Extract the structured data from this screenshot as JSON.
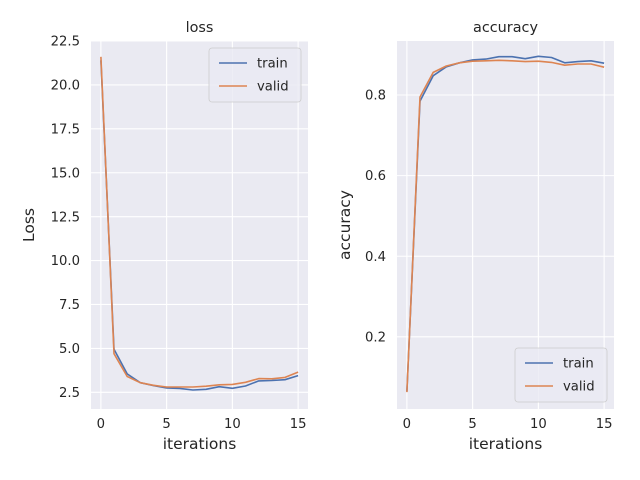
{
  "chart_data": [
    {
      "type": "line",
      "title": "loss",
      "xlabel": "iterations",
      "ylabel": "Loss",
      "xlim": [
        -0.75,
        15.75
      ],
      "ylim": [
        1.55,
        22.5
      ],
      "xticks": [
        0,
        5,
        10,
        15
      ],
      "xtick_labels": [
        "0",
        "5",
        "10",
        "15"
      ],
      "yticks": [
        2.5,
        5.0,
        7.5,
        10.0,
        12.5,
        15.0,
        17.5,
        20.0,
        22.5
      ],
      "ytick_labels": [
        "2.5",
        "5.0",
        "7.5",
        "10.0",
        "12.5",
        "15.0",
        "17.5",
        "20.0",
        "22.5"
      ],
      "grid": true,
      "legend": "top-right",
      "x": [
        0,
        1,
        2,
        3,
        4,
        5,
        6,
        7,
        8,
        9,
        10,
        11,
        12,
        13,
        14,
        15
      ],
      "series": [
        {
          "name": "train",
          "color": "#4c72b0",
          "values": [
            21.4,
            4.95,
            3.55,
            3.05,
            2.88,
            2.75,
            2.72,
            2.63,
            2.67,
            2.82,
            2.73,
            2.86,
            3.15,
            3.17,
            3.22,
            3.45
          ]
        },
        {
          "name": "valid",
          "color": "#dd8452",
          "values": [
            21.6,
            4.7,
            3.4,
            3.05,
            2.9,
            2.8,
            2.8,
            2.8,
            2.85,
            2.93,
            2.95,
            3.07,
            3.28,
            3.27,
            3.35,
            3.65
          ]
        }
      ]
    },
    {
      "type": "line",
      "title": "accuracy",
      "xlabel": "iterations",
      "ylabel": "accuracy",
      "xlim": [
        -0.75,
        15.75
      ],
      "ylim": [
        0.021,
        0.934
      ],
      "xticks": [
        0,
        5,
        10,
        15
      ],
      "xtick_labels": [
        "0",
        "5",
        "10",
        "15"
      ],
      "yticks": [
        0.2,
        0.4,
        0.6,
        0.8
      ],
      "ytick_labels": [
        "0.2",
        "0.4",
        "0.6",
        "0.8"
      ],
      "grid": true,
      "legend": "bottom-right",
      "x": [
        0,
        1,
        2,
        3,
        4,
        5,
        6,
        7,
        8,
        9,
        10,
        11,
        12,
        13,
        14,
        15
      ],
      "series": [
        {
          "name": "train",
          "color": "#4c72b0",
          "values": [
            0.065,
            0.785,
            0.848,
            0.87,
            0.88,
            0.887,
            0.889,
            0.895,
            0.895,
            0.89,
            0.896,
            0.893,
            0.88,
            0.883,
            0.885,
            0.879
          ]
        },
        {
          "name": "valid",
          "color": "#dd8452",
          "values": [
            0.063,
            0.795,
            0.856,
            0.872,
            0.88,
            0.884,
            0.885,
            0.886,
            0.885,
            0.883,
            0.884,
            0.881,
            0.874,
            0.877,
            0.877,
            0.869
          ]
        }
      ]
    }
  ]
}
